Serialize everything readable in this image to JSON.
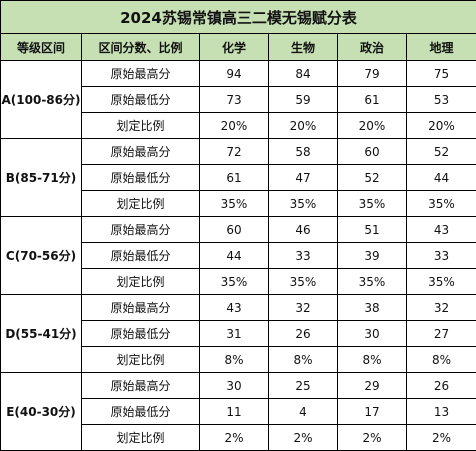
{
  "title": "2024苏锡常镇高三二模无锡赋分表",
  "headers": [
    "等级区间",
    "区间分数、比例",
    "化学",
    "生物",
    "政治",
    "地理"
  ],
  "groups": [
    {
      "range": "A(100-86分)",
      "rows": [
        {
          "label": "原始最高分",
          "values": [
            "94",
            "84",
            "79",
            "75"
          ]
        },
        {
          "label": "原始最低分",
          "values": [
            "73",
            "59",
            "61",
            "53"
          ]
        },
        {
          "label": "划定比例",
          "values": [
            "20%",
            "20%",
            "20%",
            "20%"
          ]
        }
      ]
    },
    {
      "range": "B(85-71分)",
      "rows": [
        {
          "label": "原始最高分",
          "values": [
            "72",
            "58",
            "60",
            "52"
          ]
        },
        {
          "label": "原始最低分",
          "values": [
            "61",
            "47",
            "52",
            "44"
          ]
        },
        {
          "label": "划定比例",
          "values": [
            "35%",
            "35%",
            "35%",
            "35%"
          ]
        }
      ]
    },
    {
      "range": "C(70-56分)",
      "rows": [
        {
          "label": "原始最高分",
          "values": [
            "60",
            "46",
            "51",
            "43"
          ]
        },
        {
          "label": "原始最低分",
          "values": [
            "44",
            "33",
            "39",
            "33"
          ]
        },
        {
          "label": "划定比例",
          "values": [
            "35%",
            "35%",
            "35%",
            "35%"
          ]
        }
      ]
    },
    {
      "range": "D(55-41分)",
      "rows": [
        {
          "label": "原始最高分",
          "values": [
            "43",
            "32",
            "38",
            "32"
          ]
        },
        {
          "label": "原始最低分",
          "values": [
            "31",
            "26",
            "30",
            "27"
          ]
        },
        {
          "label": "划定比例",
          "values": [
            "8%",
            "8%",
            "8%",
            "8%"
          ]
        }
      ]
    },
    {
      "range": "E(40-30分)",
      "rows": [
        {
          "label": "原始最高分",
          "values": [
            "30",
            "25",
            "29",
            "26"
          ]
        },
        {
          "label": "原始最低分",
          "values": [
            "11",
            "4",
            "17",
            "13"
          ]
        },
        {
          "label": "划定比例",
          "values": [
            "2%",
            "2%",
            "2%",
            "2%"
          ]
        }
      ]
    }
  ]
}
